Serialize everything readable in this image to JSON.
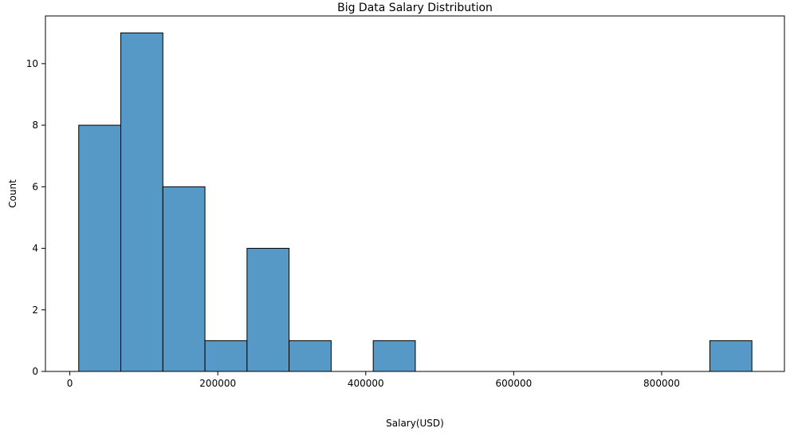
{
  "chart_data": {
    "type": "bar",
    "title": "Big Data Salary Distribution",
    "xlabel": "Salary(USD)",
    "ylabel": "Count",
    "xlim": [
      -33000,
      966000
    ],
    "ylim": [
      0,
      11.55
    ],
    "xticks": [
      0,
      200000,
      400000,
      600000,
      800000
    ],
    "yticks": [
      0,
      2,
      4,
      6,
      8,
      10
    ],
    "grid": false,
    "bin_width": 56875,
    "bins": [
      {
        "x0": 12000,
        "x1": 68875,
        "count": 8
      },
      {
        "x0": 68875,
        "x1": 125750,
        "count": 11
      },
      {
        "x0": 125750,
        "x1": 182625,
        "count": 6
      },
      {
        "x0": 182625,
        "x1": 239500,
        "count": 1
      },
      {
        "x0": 239500,
        "x1": 296375,
        "count": 4
      },
      {
        "x0": 296375,
        "x1": 353250,
        "count": 1
      },
      {
        "x0": 353250,
        "x1": 410125,
        "count": 0
      },
      {
        "x0": 410125,
        "x1": 467000,
        "count": 1
      },
      {
        "x0": 467000,
        "x1": 523875,
        "count": 0
      },
      {
        "x0": 523875,
        "x1": 580750,
        "count": 0
      },
      {
        "x0": 580750,
        "x1": 637625,
        "count": 0
      },
      {
        "x0": 637625,
        "x1": 694500,
        "count": 0
      },
      {
        "x0": 694500,
        "x1": 751375,
        "count": 0
      },
      {
        "x0": 751375,
        "x1": 808250,
        "count": 0
      },
      {
        "x0": 808250,
        "x1": 865125,
        "count": 0
      },
      {
        "x0": 865125,
        "x1": 922000,
        "count": 1
      }
    ],
    "colors": {
      "bar_fill": "#5799c6",
      "bar_edge": "#000000",
      "axis": "#000000"
    }
  }
}
